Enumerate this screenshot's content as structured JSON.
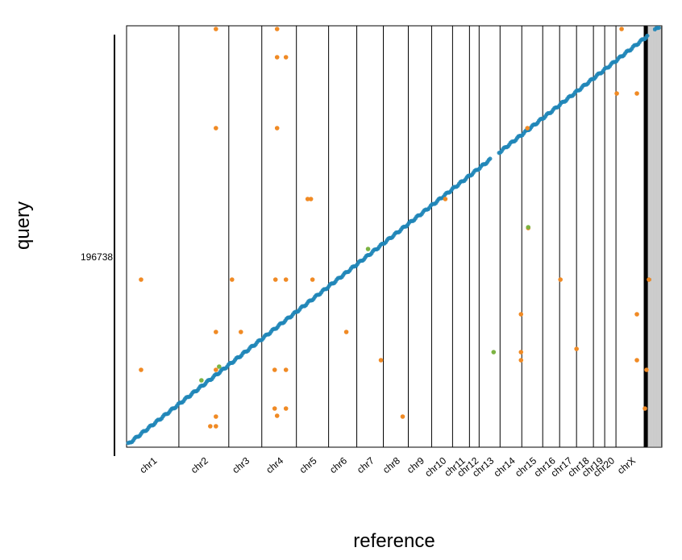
{
  "chart_data": {
    "type": "scatter",
    "title": "",
    "xlabel": "reference",
    "ylabel": "query",
    "y_tick_label": "196738",
    "grid": "chromosome boundary lines",
    "chromosomes": [
      {
        "name": "chr1",
        "start": 0,
        "end": 65
      },
      {
        "name": "chr2",
        "start": 65,
        "end": 127
      },
      {
        "name": "chr3",
        "start": 127,
        "end": 168
      },
      {
        "name": "chr4",
        "start": 168,
        "end": 211
      },
      {
        "name": "chr5",
        "start": 211,
        "end": 251
      },
      {
        "name": "chr6",
        "start": 251,
        "end": 286
      },
      {
        "name": "chr7",
        "start": 286,
        "end": 319
      },
      {
        "name": "chr8",
        "start": 319,
        "end": 350
      },
      {
        "name": "chr9",
        "start": 350,
        "end": 379
      },
      {
        "name": "chr10",
        "start": 379,
        "end": 405
      },
      {
        "name": "chr11",
        "start": 405,
        "end": 426
      },
      {
        "name": "chr12",
        "start": 426,
        "end": 438
      },
      {
        "name": "chr13",
        "start": 438,
        "end": 464
      },
      {
        "name": "chr14",
        "start": 464,
        "end": 491
      },
      {
        "name": "chr15",
        "start": 491,
        "end": 517
      },
      {
        "name": "chr16",
        "start": 517,
        "end": 538
      },
      {
        "name": "chr17",
        "start": 538,
        "end": 559
      },
      {
        "name": "chr18",
        "start": 559,
        "end": 580
      },
      {
        "name": "chr19",
        "start": 580,
        "end": 594
      },
      {
        "name": "chr20",
        "start": 594,
        "end": 608
      },
      {
        "name": "chrX",
        "start": 608,
        "end": 646
      },
      {
        "name": "",
        "start": 646,
        "end": 665
      }
    ],
    "x_range": [
      0,
      665
    ],
    "y_range": [
      0,
      523
    ],
    "colors": {
      "diagonal": "#1f86b8",
      "orange": "#f08a24",
      "green": "#7cb342",
      "boundary": "#000000"
    },
    "series": [
      {
        "color_key": "orange",
        "points": [
          [
            111,
            519
          ],
          [
            187,
            519
          ],
          [
            187,
            484
          ],
          [
            198,
            484
          ],
          [
            111,
            396
          ],
          [
            187,
            396
          ],
          [
            225,
            308
          ],
          [
            229,
            308
          ],
          [
            396,
            308
          ],
          [
            498,
            396
          ],
          [
            499,
            272
          ],
          [
            18,
            208
          ],
          [
            131,
            208
          ],
          [
            185,
            208
          ],
          [
            198,
            208
          ],
          [
            231,
            208
          ],
          [
            539,
            208
          ],
          [
            649,
            208
          ],
          [
            111,
            143
          ],
          [
            142,
            143
          ],
          [
            273,
            143
          ],
          [
            111,
            96
          ],
          [
            316,
            108
          ],
          [
            559,
            122
          ],
          [
            184,
            96
          ],
          [
            198,
            96
          ],
          [
            490,
            118
          ],
          [
            490,
            165
          ],
          [
            490,
            108
          ],
          [
            634,
            165
          ],
          [
            634,
            108
          ],
          [
            646,
            96
          ],
          [
            18,
            96
          ],
          [
            111,
            38
          ],
          [
            104,
            26
          ],
          [
            111,
            26
          ],
          [
            184,
            48
          ],
          [
            198,
            48
          ],
          [
            187,
            39
          ],
          [
            343,
            38
          ],
          [
            634,
            439
          ],
          [
            609,
            439
          ],
          [
            615,
            519
          ],
          [
            644,
            48
          ]
        ]
      },
      {
        "color_key": "green",
        "points": [
          [
            499,
            273
          ],
          [
            456,
            118
          ],
          [
            115,
            100
          ],
          [
            300,
            246
          ],
          [
            93,
            83
          ]
        ]
      }
    ]
  }
}
